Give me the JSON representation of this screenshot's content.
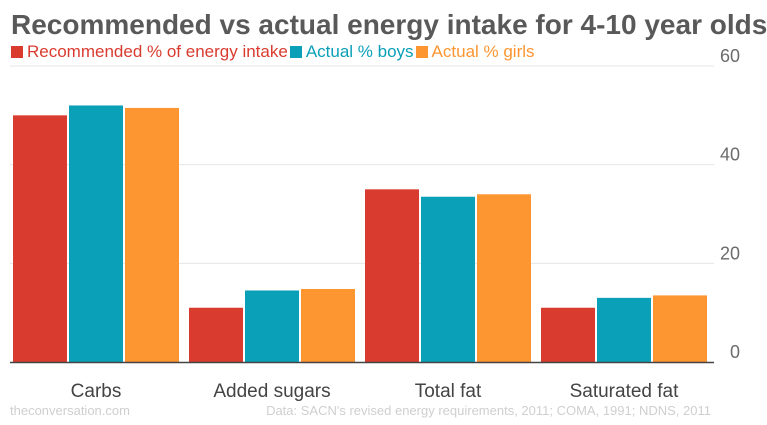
{
  "chart_data": {
    "type": "bar",
    "title": "Recommended vs actual energy intake for 4-10 year olds",
    "categories": [
      "Carbs",
      "Added sugars",
      "Total fat",
      "Saturated fat"
    ],
    "series": [
      {
        "name": "Recommended % of energy intake",
        "color": "#d93b2f",
        "values": [
          50,
          11,
          35,
          11
        ]
      },
      {
        "name": "Actual % boys",
        "color": "#0aa0b8",
        "values": [
          52,
          14.5,
          33.5,
          13
        ]
      },
      {
        "name": "Actual % girls",
        "color": "#fd9531",
        "values": [
          51.5,
          14.8,
          34,
          13.5
        ]
      }
    ],
    "ylim": [
      0,
      60
    ],
    "yticks": [
      "0",
      "20",
      "40",
      "60"
    ],
    "grid": true,
    "legend_position": "top-left"
  },
  "footer": {
    "source": "theconversation.com",
    "credit": "Data: SACN's revised energy requirements, 2011; COMA, 1991; NDNS, 2011"
  }
}
